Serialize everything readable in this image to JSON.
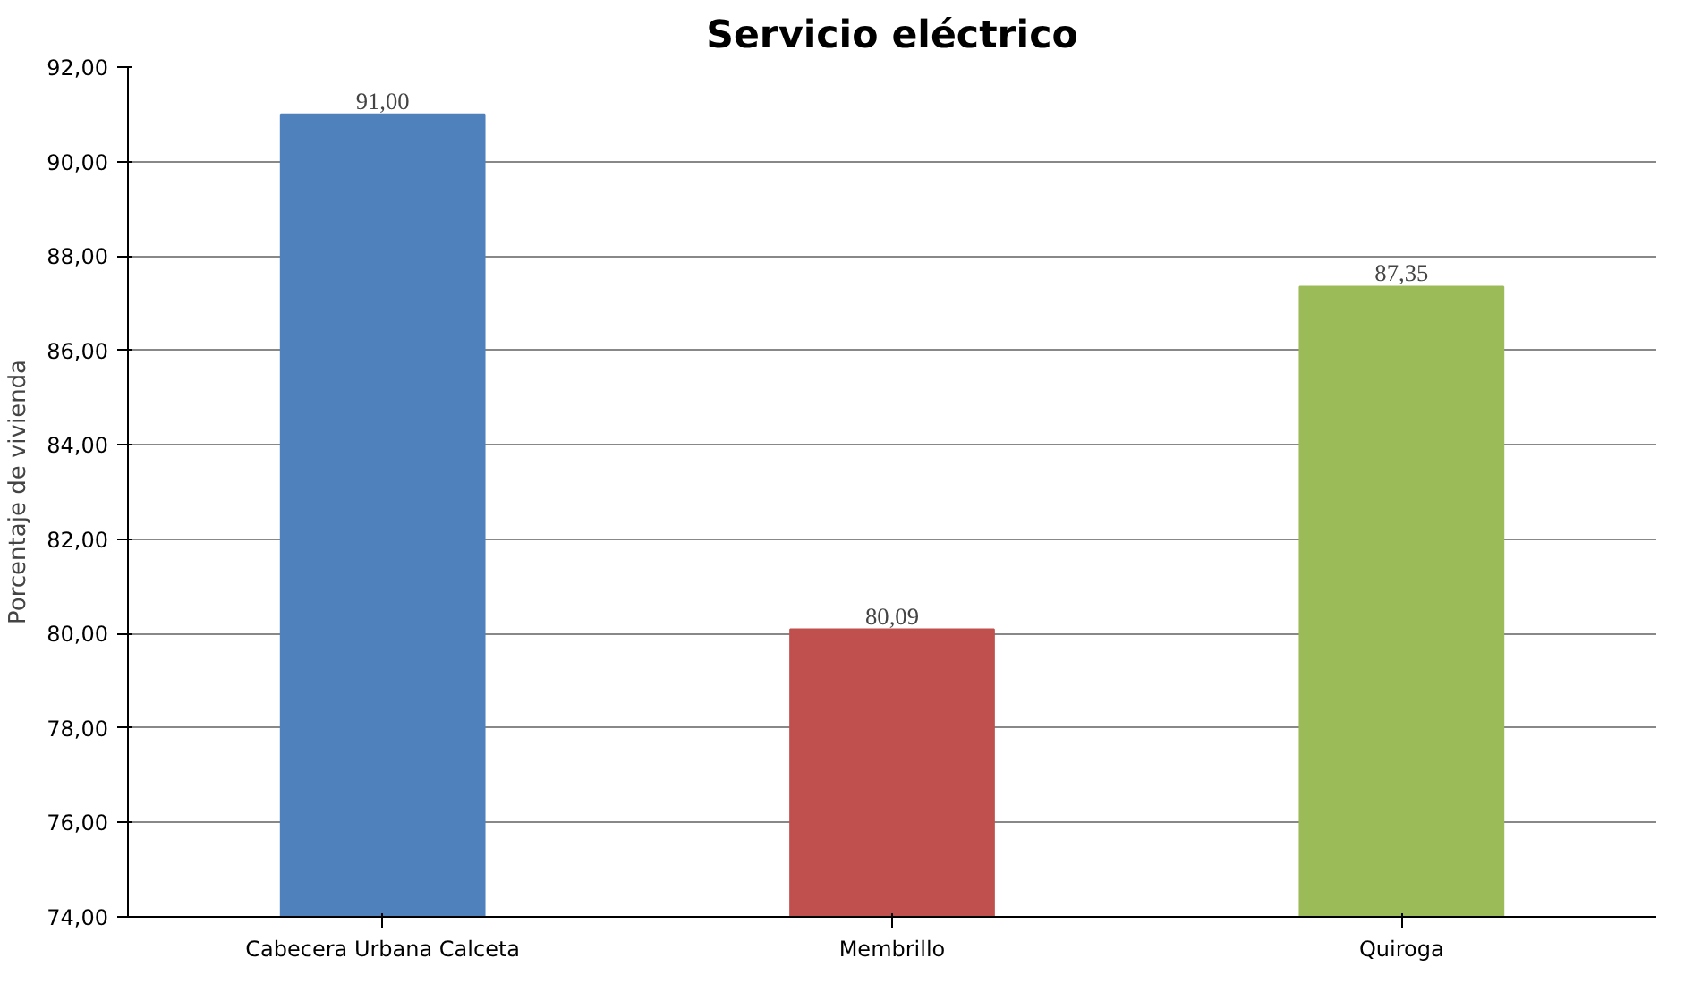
{
  "chart_data": {
    "type": "bar",
    "title": "Servicio eléctrico",
    "ylabel": "Porcentaje de vivienda",
    "categories": [
      "Cabecera Urbana Calceta",
      "Membrillo",
      "Quiroga"
    ],
    "values": [
      91.0,
      80.09,
      87.35
    ],
    "colors": [
      "#4f81bd",
      "#c0504d",
      "#9bbb59"
    ],
    "value_labels": [
      "91,00",
      "80,09",
      "87,35"
    ],
    "ylim": [
      74,
      92
    ],
    "yticks": [
      {
        "value": 74,
        "label": "74,00"
      },
      {
        "value": 76,
        "label": "76,00"
      },
      {
        "value": 78,
        "label": "78,00"
      },
      {
        "value": 80,
        "label": "80,00"
      },
      {
        "value": 82,
        "label": "82,00"
      },
      {
        "value": 84,
        "label": "84,00"
      },
      {
        "value": 86,
        "label": "86,00"
      },
      {
        "value": 88,
        "label": "88,00"
      },
      {
        "value": 90,
        "label": "90,00"
      },
      {
        "value": 92,
        "label": "92,00"
      }
    ],
    "grid": "y"
  }
}
